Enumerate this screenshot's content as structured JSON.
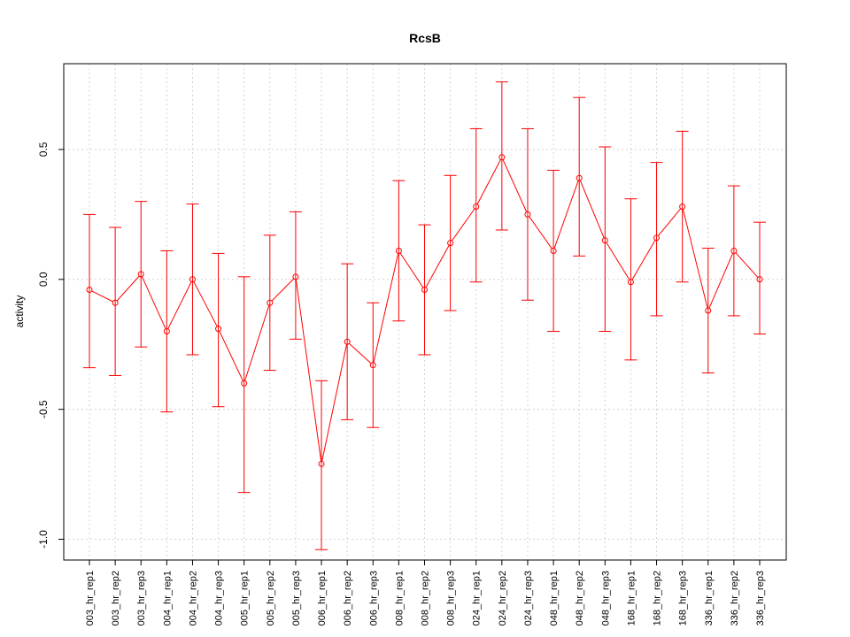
{
  "chart_data": {
    "type": "line",
    "title": "RcsB",
    "xlabel": "",
    "ylabel": "activity",
    "ylim": [
      -1.08,
      0.83
    ],
    "yticks": [
      -1.0,
      -0.5,
      0.0,
      0.5
    ],
    "ytick_labels": [
      "-1.0",
      "-0.5",
      "0.0",
      "0.5"
    ],
    "grid": true,
    "categories": [
      "003_hr_rep1",
      "003_hr_rep2",
      "003_hr_rep3",
      "004_hr_rep1",
      "004_hr_rep2",
      "004_hr_rep3",
      "005_hr_rep1",
      "005_hr_rep2",
      "005_hr_rep3",
      "006_hr_rep1",
      "006_hr_rep2",
      "006_hr_rep3",
      "008_hr_rep1",
      "008_hr_rep2",
      "008_hr_rep3",
      "024_hr_rep1",
      "024_hr_rep2",
      "024_hr_rep3",
      "048_hr_rep1",
      "048_hr_rep2",
      "048_hr_rep3",
      "168_hr_rep1",
      "168_hr_rep2",
      "168_hr_rep3",
      "336_hr_rep1",
      "336_hr_rep2",
      "336_hr_rep3"
    ],
    "series": [
      {
        "color": "#ff0000",
        "values": [
          -0.04,
          -0.09,
          0.02,
          -0.2,
          0.0,
          -0.19,
          -0.4,
          -0.09,
          0.01,
          -0.71,
          -0.24,
          -0.33,
          0.11,
          -0.04,
          0.14,
          0.28,
          0.47,
          0.25,
          0.11,
          0.39,
          0.15,
          -0.01,
          0.16,
          0.28,
          -0.12,
          0.11,
          0.0
        ],
        "lower": [
          -0.34,
          -0.37,
          -0.26,
          -0.51,
          -0.29,
          -0.49,
          -0.82,
          -0.35,
          -0.23,
          -1.04,
          -0.54,
          -0.57,
          -0.16,
          -0.29,
          -0.12,
          -0.01,
          0.19,
          -0.08,
          -0.2,
          0.09,
          -0.2,
          -0.31,
          -0.14,
          -0.01,
          -0.36,
          -0.14,
          -0.21
        ],
        "upper": [
          0.25,
          0.2,
          0.3,
          0.11,
          0.29,
          0.1,
          0.01,
          0.17,
          0.26,
          -0.39,
          0.06,
          -0.09,
          0.38,
          0.21,
          0.4,
          0.58,
          0.76,
          0.58,
          0.42,
          0.7,
          0.51,
          0.31,
          0.45,
          0.57,
          0.12,
          0.36,
          0.22
        ]
      }
    ]
  }
}
